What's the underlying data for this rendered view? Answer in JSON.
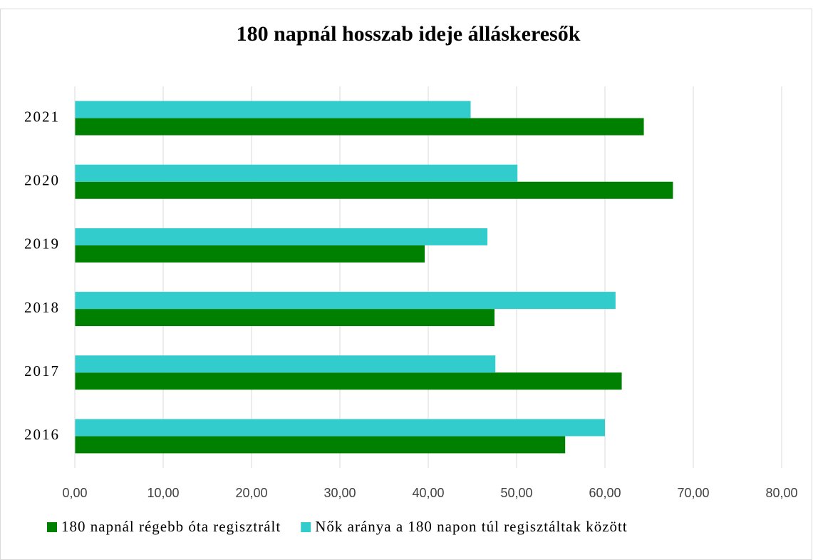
{
  "chart_data": {
    "type": "hbar",
    "title": "180 napnál hosszab ideje álláskeresők",
    "categories": [
      "2016",
      "2017",
      "2018",
      "2019",
      "2020",
      "2021"
    ],
    "series": [
      {
        "name": "180 napnál régebb óta regisztrált",
        "color": "#008000",
        "values": [
          55.5,
          61.9,
          47.5,
          39.6,
          67.7,
          64.4
        ]
      },
      {
        "name": "Nők aránya a 180 napon túl regisztáltak között",
        "color": "#33cccc",
        "values": [
          60.0,
          47.6,
          61.2,
          46.7,
          50.1,
          44.8
        ]
      }
    ],
    "xlim": [
      0,
      80
    ],
    "xticks": [
      {
        "value": 0,
        "label": "0,00"
      },
      {
        "value": 10,
        "label": "10,00"
      },
      {
        "value": 20,
        "label": "20,00"
      },
      {
        "value": 30,
        "label": "30,00"
      },
      {
        "value": 40,
        "label": "40,00"
      },
      {
        "value": 50,
        "label": "50,00"
      },
      {
        "value": 60,
        "label": "60,00"
      },
      {
        "value": 70,
        "label": "70,00"
      },
      {
        "value": 80,
        "label": "80,00"
      }
    ],
    "grid": true,
    "legend": "bottom"
  }
}
